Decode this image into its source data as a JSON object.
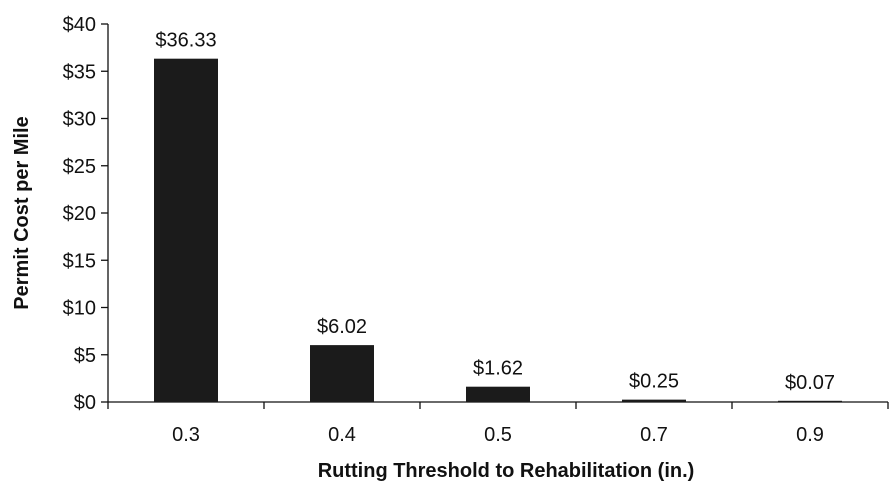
{
  "chart_data": {
    "type": "bar",
    "title": "",
    "xlabel": "Rutting Threshold to Rehabilitation (in.)",
    "ylabel": "Permit Cost per Mile",
    "categories": [
      "0.3",
      "0.4",
      "0.5",
      "0.7",
      "0.9"
    ],
    "values": [
      36.33,
      6.02,
      1.62,
      0.25,
      0.07
    ],
    "data_labels": [
      "$36.33",
      "$6.02",
      "$1.62",
      "$0.25",
      "$0.07"
    ],
    "ylim": [
      0,
      40
    ],
    "y_ticks": [
      0,
      5,
      10,
      15,
      20,
      25,
      30,
      35,
      40
    ],
    "y_tick_labels": [
      "$0",
      "$5",
      "$10",
      "$15",
      "$20",
      "$25",
      "$30",
      "$35",
      "$40"
    ],
    "grid": false,
    "legend": "none",
    "colors": {
      "bar": "#1b1b1b",
      "axis": "#111111"
    }
  }
}
